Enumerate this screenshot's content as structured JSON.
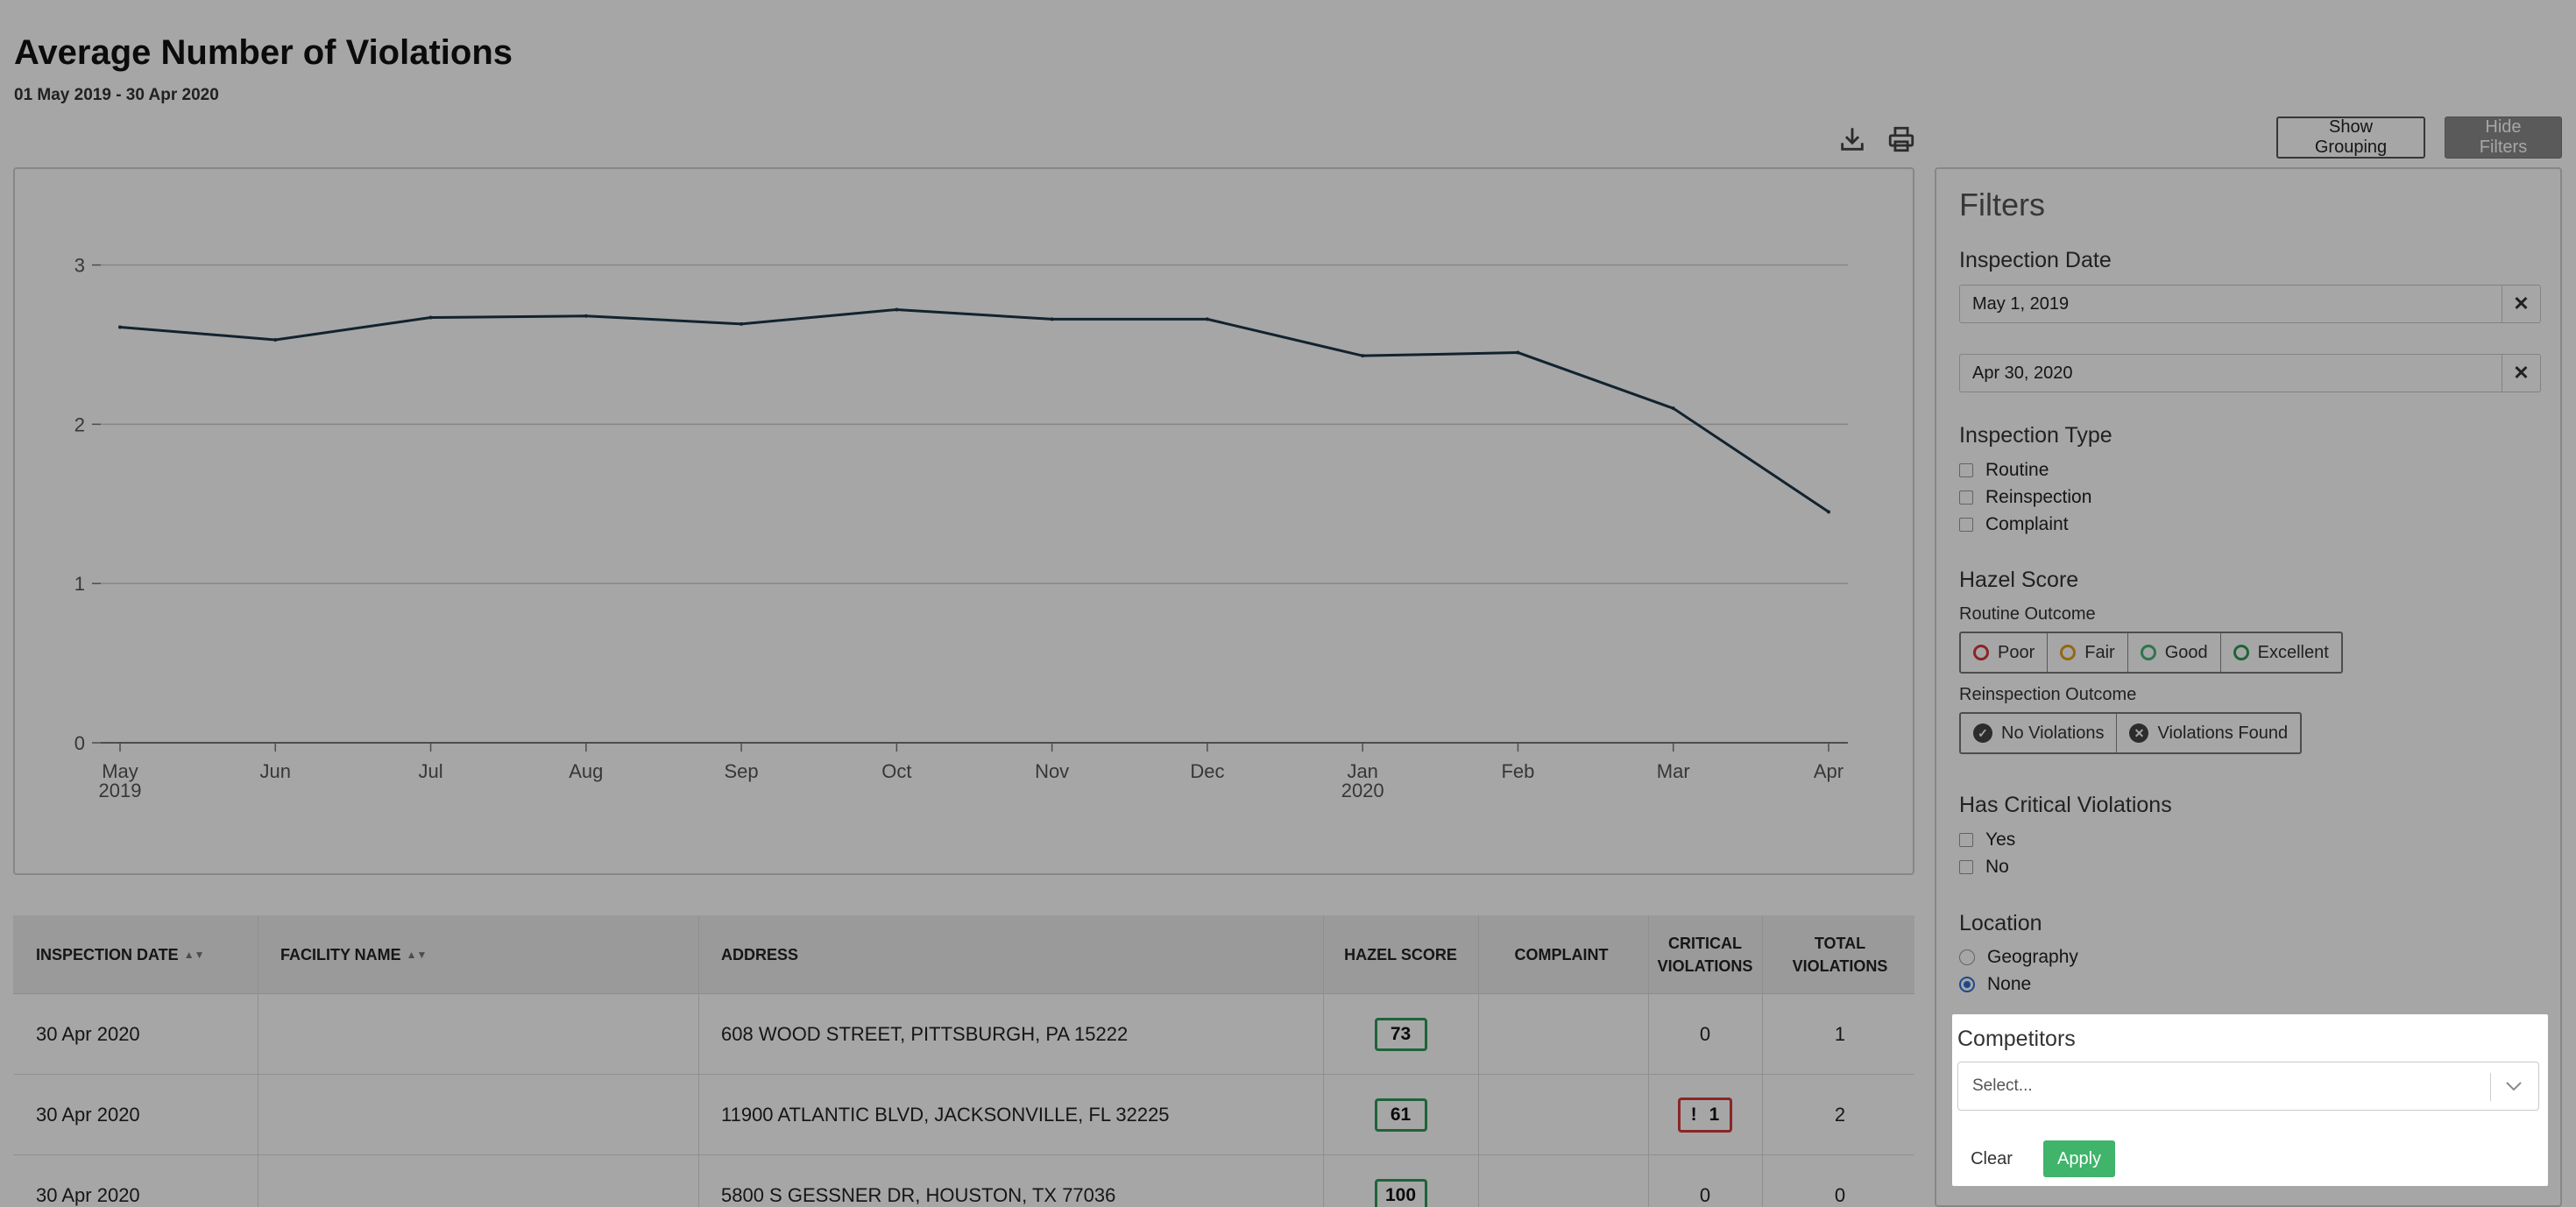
{
  "header": {
    "title": "Average Number of Violations",
    "date_range": "01 May 2019 - 30 Apr 2020",
    "show_grouping_label": "Show Grouping",
    "hide_filters_label": "Hide Filters"
  },
  "chart_data": {
    "type": "line",
    "title": "",
    "xlabel": "",
    "ylabel": "",
    "categories": [
      "May",
      "Jun",
      "Jul",
      "Aug",
      "Sep",
      "Oct",
      "Nov",
      "Dec",
      "Jan",
      "Feb",
      "Mar",
      "Apr"
    ],
    "category_sublabels": [
      "2019",
      "",
      "",
      "",
      "",
      "",
      "",
      "",
      "2020",
      "",
      "",
      ""
    ],
    "series": [
      {
        "values": [
          2.61,
          2.53,
          2.67,
          2.68,
          2.63,
          2.72,
          2.66,
          2.66,
          2.43,
          2.45,
          2.1,
          1.45
        ]
      }
    ],
    "ylim": [
      0,
      3.3
    ],
    "yticks": [
      0,
      1,
      2,
      3
    ],
    "grid": true,
    "line_color": "#1d3748"
  },
  "table": {
    "columns": [
      {
        "label": "INSPECTION DATE",
        "sortable": true
      },
      {
        "label": "FACILITY NAME",
        "sortable": true
      },
      {
        "label": "ADDRESS",
        "sortable": false
      },
      {
        "label": "HAZEL SCORE",
        "sortable": false
      },
      {
        "label": "COMPLAINT",
        "sortable": false
      },
      {
        "label": "CRITICAL VIOLATIONS",
        "sortable": false
      },
      {
        "label": "TOTAL VIOLATIONS",
        "sortable": false
      }
    ],
    "rows": [
      {
        "date": "30 Apr 2020",
        "facility": "",
        "address": "608 WOOD STREET, PITTSBURGH, PA 15222",
        "hazel_score": "73",
        "complaint": "",
        "critical": "0",
        "critical_flag": false,
        "total": "1"
      },
      {
        "date": "30 Apr 2020",
        "facility": "",
        "address": "11900 ATLANTIC BLVD, JACKSONVILLE, FL 32225",
        "hazel_score": "61",
        "complaint": "",
        "critical": "1",
        "critical_flag": true,
        "total": "2"
      },
      {
        "date": "30 Apr 2020",
        "facility": "",
        "address": "5800 S GESSNER DR, HOUSTON, TX 77036",
        "hazel_score": "100",
        "complaint": "",
        "critical": "0",
        "critical_flag": false,
        "total": "0"
      }
    ]
  },
  "filters": {
    "title": "Filters",
    "inspection_date": {
      "label": "Inspection Date",
      "start": "May 1, 2019",
      "end": "Apr 30, 2020"
    },
    "inspection_type": {
      "label": "Inspection Type",
      "options": [
        "Routine",
        "Reinspection",
        "Complaint"
      ]
    },
    "hazel_score": {
      "label": "Hazel Score",
      "routine_label": "Routine Outcome",
      "routine_options": [
        {
          "label": "Poor",
          "color": "#d43a3a"
        },
        {
          "label": "Fair",
          "color": "#e0a21f"
        },
        {
          "label": "Good",
          "color": "#49b37a"
        },
        {
          "label": "Excellent",
          "color": "#2e9a56"
        }
      ],
      "reinspection_label": "Reinspection Outcome",
      "reinspection_options": [
        {
          "label": "No Violations",
          "icon": "check-circle-icon"
        },
        {
          "label": "Violations Found",
          "icon": "x-circle-icon"
        }
      ]
    },
    "critical": {
      "label": "Has Critical Violations",
      "options": [
        "Yes",
        "No"
      ]
    },
    "location": {
      "label": "Location",
      "options": [
        "Geography",
        "None"
      ],
      "selected": "None"
    },
    "competitors": {
      "label": "Competitors",
      "placeholder": "Select..."
    },
    "clear_label": "Clear",
    "apply_label": "Apply"
  }
}
